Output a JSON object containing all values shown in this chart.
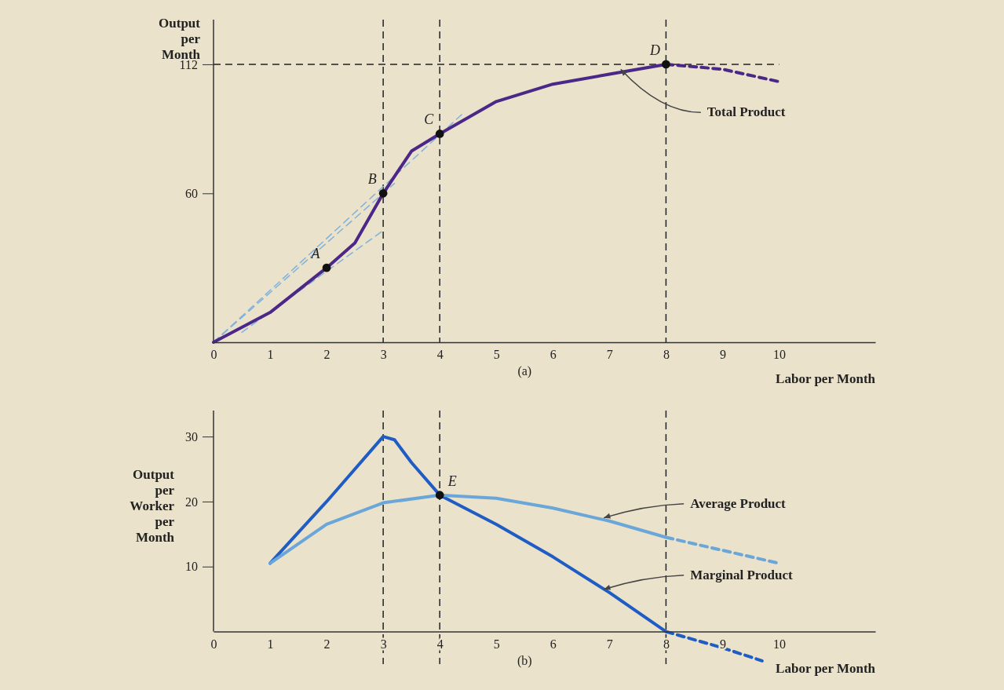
{
  "chart_data": [
    {
      "type": "line",
      "xlabel": "Labor per Month",
      "ylabel": "Output per Month",
      "xlim": [
        0,
        11.7
      ],
      "ylim": [
        0,
        130
      ],
      "xticks": [
        0,
        1,
        2,
        3,
        4,
        5,
        6,
        7,
        8,
        9,
        10
      ],
      "yticks": [
        60,
        112
      ],
      "grid": false,
      "series": [
        {
          "type": "line",
          "color": "#7fb2dc",
          "line_style": "dashed",
          "x": [
            0,
            4.4
          ],
          "values": [
            0,
            92
          ]
        },
        {
          "type": "line",
          "color": "#7fb2dc",
          "line_style": "dashed",
          "x": [
            0,
            3.2
          ],
          "values": [
            0,
            64
          ]
        },
        {
          "type": "line",
          "color": "#7fb2dc",
          "line_style": "dashed",
          "x": [
            0.5,
            3
          ],
          "values": [
            4,
            45
          ]
        },
        {
          "type": "line",
          "color": "#4b2887",
          "line_style": "solid",
          "x": [
            0,
            1,
            2,
            2.5,
            3,
            3.5,
            4,
            5,
            6,
            7,
            8
          ],
          "values": [
            0,
            12,
            30,
            40,
            60,
            77,
            84,
            97,
            104,
            108,
            112
          ]
        },
        {
          "type": "line",
          "color": "#4b2887",
          "line_style": "dashed",
          "x": [
            8,
            9,
            10
          ],
          "values": [
            112,
            110,
            105
          ]
        },
        {
          "type": "scatter",
          "color": "#111111",
          "marker": "circle",
          "x": [
            2,
            3,
            4,
            8
          ],
          "values": [
            30,
            60,
            84,
            112
          ]
        }
      ],
      "ref_lines": [
        {
          "axis": "y",
          "value": 112
        },
        {
          "axis": "x",
          "value": 3
        },
        {
          "axis": "x",
          "value": 4
        },
        {
          "axis": "x",
          "value": 8
        }
      ],
      "annotations": [
        {
          "text": "A",
          "x": 2,
          "y": 30
        },
        {
          "text": "B",
          "x": 3,
          "y": 60
        },
        {
          "text": "C",
          "x": 4,
          "y": 84
        },
        {
          "text": "D",
          "x": 8,
          "y": 112
        },
        {
          "text": "Total Product",
          "x": 7.2,
          "y": 110
        },
        "(a)"
      ]
    },
    {
      "type": "line",
      "xlabel": "Labor per Month",
      "ylabel": "Output per Worker per Month",
      "xlim": [
        0,
        11.7
      ],
      "ylim": [
        -5,
        34
      ],
      "xticks": [
        0,
        1,
        2,
        3,
        4,
        5,
        6,
        7,
        8,
        9,
        10
      ],
      "yticks": [
        10,
        20,
        30
      ],
      "grid": false,
      "series": [
        {
          "type": "line",
          "color": "#1f5cc4",
          "line_style": "solid",
          "x": [
            1,
            2,
            3,
            3.2,
            3.5,
            3.9,
            4,
            5,
            6,
            7,
            8
          ],
          "values": [
            10.5,
            20,
            30,
            29.5,
            26,
            22,
            21,
            16.5,
            11.5,
            6,
            0
          ]
        },
        {
          "type": "line",
          "color": "#1f5cc4",
          "line_style": "dashed",
          "x": [
            8,
            9,
            9.7
          ],
          "values": [
            0,
            -2.5,
            -4.5
          ]
        },
        {
          "type": "line",
          "color": "#6aa6d8",
          "line_style": "solid",
          "x": [
            1,
            2,
            3,
            4,
            5,
            6,
            7,
            8
          ],
          "values": [
            10.5,
            16.5,
            19.8,
            21,
            20.5,
            19,
            17,
            14.5
          ]
        },
        {
          "type": "line",
          "color": "#6aa6d8",
          "line_style": "dashed",
          "x": [
            8,
            9,
            10
          ],
          "values": [
            14.5,
            12.5,
            10.5
          ]
        },
        {
          "type": "scatter",
          "color": "#111111",
          "marker": "circle",
          "x": [
            4
          ],
          "values": [
            21
          ]
        }
      ],
      "ref_lines": [
        {
          "axis": "x",
          "value": 3
        },
        {
          "axis": "x",
          "value": 4
        },
        {
          "axis": "x",
          "value": 8
        }
      ],
      "annotations": [
        {
          "text": "E",
          "x": 4,
          "y": 21
        },
        {
          "text": "Average Product",
          "x": 6.9,
          "y": 17.5
        },
        {
          "text": "Marginal Product",
          "x": 6.9,
          "y": 6.5
        },
        "(b)"
      ]
    }
  ]
}
